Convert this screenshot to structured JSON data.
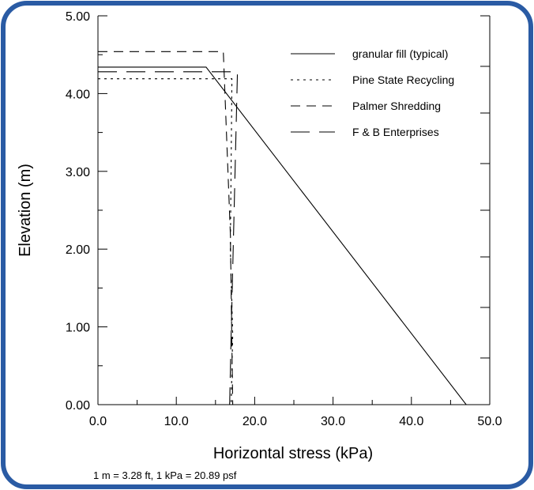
{
  "colors": {
    "border": "#2a5ba4",
    "background": "#ffffff",
    "ink": "#000000"
  },
  "footnote": "1 m = 3.28 ft, 1 kPa = 20.89 psf",
  "chart_data": {
    "type": "line",
    "title": "",
    "xlabel": "Horizontal stress (kPa)",
    "ylabel": "Elevation (m)",
    "xlim": [
      0,
      50
    ],
    "ylim": [
      0,
      5
    ],
    "x_ticks": [
      "0.0",
      "10.0",
      "20.0",
      "30.0",
      "40.0",
      "50.0"
    ],
    "y_ticks": [
      "0.00",
      "1.00",
      "2.00",
      "3.00",
      "4.00",
      "5.00"
    ],
    "grid": false,
    "legend_position": "top-right",
    "series": [
      {
        "name": "granular fill (typical)",
        "dash": "solid",
        "points": [
          [
            0,
            4.34
          ],
          [
            13.8,
            4.34
          ],
          [
            47,
            0
          ]
        ]
      },
      {
        "name": "Pine State Recycling",
        "dash": "dotted",
        "points": [
          [
            0,
            4.19
          ],
          [
            17.1,
            4.19
          ],
          [
            16.9,
            2.0
          ],
          [
            17.2,
            0.9
          ],
          [
            17.0,
            0
          ]
        ]
      },
      {
        "name": "Palmer Shredding",
        "dash": "dashed",
        "points": [
          [
            0,
            4.54
          ],
          [
            16.0,
            4.54
          ],
          [
            16.9,
            2.2
          ],
          [
            17.2,
            0
          ]
        ]
      },
      {
        "name": "F & B Enterprises",
        "dash": "longdash",
        "points": [
          [
            0,
            4.28
          ],
          [
            17.8,
            4.28
          ],
          [
            17.0,
            0.9
          ],
          [
            16.8,
            0
          ]
        ]
      }
    ]
  }
}
